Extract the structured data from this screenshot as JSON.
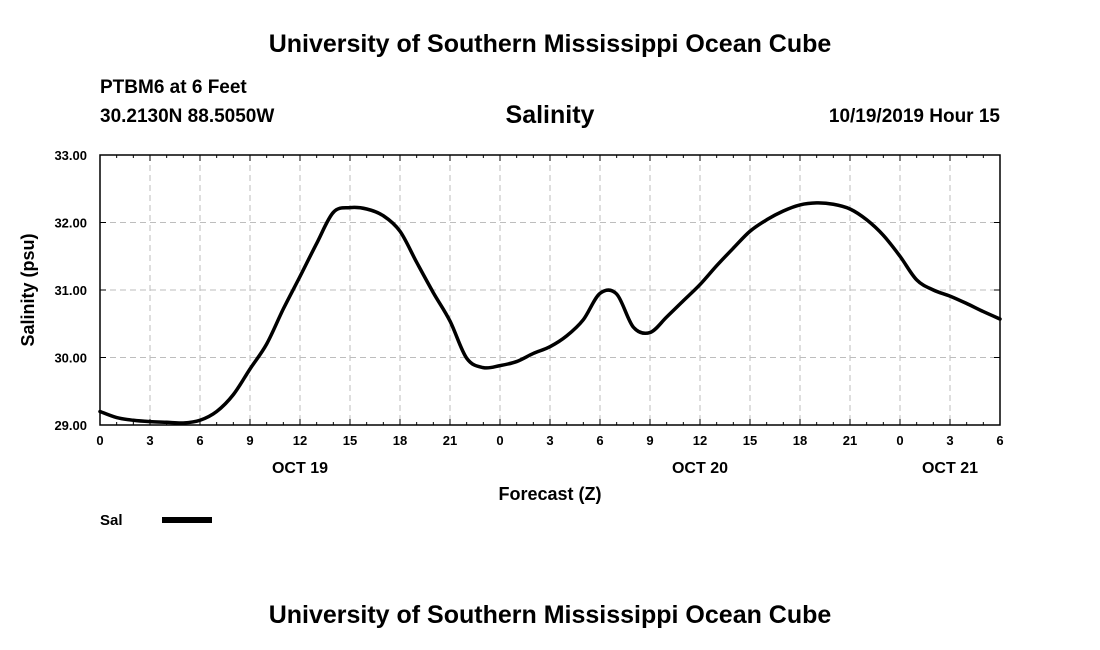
{
  "header": {
    "title": "University of Southern Mississippi Ocean Cube",
    "station": "PTBM6 at 6 Feet",
    "location": "30.2130N 88.5050W",
    "variable": "Salinity",
    "timestamp": "10/19/2019 Hour 15"
  },
  "footer": {
    "title": "University of Southern Mississippi Ocean Cube"
  },
  "legend": {
    "label": "Sal",
    "color": "#000000"
  },
  "chart_data": {
    "type": "line",
    "title": "Salinity",
    "xlabel": "Forecast (Z)",
    "ylabel": "Salinity (psu)",
    "x_unit": "hours since Oct 19 00Z",
    "xlim": [
      0,
      54
    ],
    "ylim": [
      29.0,
      33.0
    ],
    "grid": true,
    "legend_position": "bottom-left",
    "x_tick_hours": [
      0,
      3,
      6,
      9,
      12,
      15,
      18,
      21,
      24,
      27,
      30,
      33,
      36,
      39,
      42,
      45,
      48,
      51,
      54
    ],
    "x_tick_labels": [
      "0",
      "3",
      "6",
      "9",
      "12",
      "15",
      "18",
      "21",
      "0",
      "3",
      "6",
      "9",
      "12",
      "15",
      "18",
      "21",
      "0",
      "3",
      "6"
    ],
    "date_labels": [
      {
        "hour": 12,
        "text": "OCT 19"
      },
      {
        "hour": 36,
        "text": "OCT 20"
      },
      {
        "hour": 51,
        "text": "OCT 21"
      }
    ],
    "y_ticks": [
      29.0,
      30.0,
      31.0,
      32.0,
      33.0
    ],
    "y_tick_labels": [
      "29.00",
      "30.00",
      "31.00",
      "32.00",
      "33.00"
    ],
    "series": [
      {
        "name": "Sal",
        "x": [
          0,
          1,
          2,
          3,
          4,
          5,
          6,
          7,
          8,
          9,
          10,
          11,
          12,
          13,
          14,
          15,
          16,
          17,
          18,
          19,
          20,
          21,
          22,
          23,
          24,
          25,
          26,
          27,
          28,
          29,
          30,
          31,
          32,
          33,
          34,
          35,
          36,
          37,
          38,
          39,
          40,
          41,
          42,
          43,
          44,
          45,
          46,
          47,
          48,
          49,
          50,
          51,
          52,
          53,
          54
        ],
        "y": [
          29.2,
          29.11,
          29.07,
          29.05,
          29.04,
          29.03,
          29.07,
          29.2,
          29.45,
          29.83,
          30.2,
          30.72,
          31.2,
          31.69,
          32.15,
          32.22,
          32.2,
          32.1,
          31.87,
          31.41,
          30.96,
          30.54,
          29.99,
          29.85,
          29.88,
          29.94,
          30.06,
          30.16,
          30.32,
          30.56,
          30.95,
          30.94,
          30.45,
          30.37,
          30.6,
          30.84,
          31.08,
          31.36,
          31.62,
          31.87,
          32.04,
          32.17,
          32.26,
          32.29,
          32.27,
          32.2,
          32.04,
          31.81,
          31.5,
          31.15,
          31.0,
          30.91,
          30.8,
          30.68,
          30.57
        ]
      }
    ]
  }
}
